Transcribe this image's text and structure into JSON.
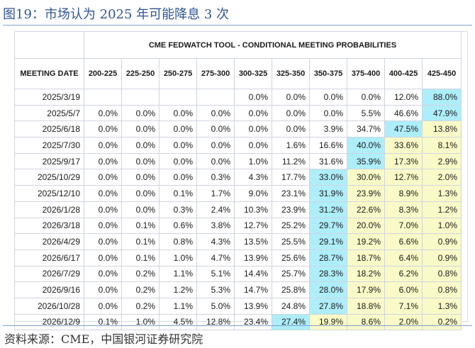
{
  "figure": {
    "title": "图19：市场认为 2025 年可能降息 3 次",
    "source": "资料来源：CME，中国银河证券研究院"
  },
  "colors": {
    "cyan": "#aeeefa",
    "yellow": "#fafac8",
    "white": "#ffffff"
  },
  "chart_data": {
    "type": "table",
    "title": "CME FEDWATCH TOOL - CONDITIONAL MEETING PROBABILITIES",
    "row_header": "MEETING DATE",
    "columns": [
      "200-225",
      "225-250",
      "250-275",
      "275-300",
      "300-325",
      "325-350",
      "350-375",
      "375-400",
      "400-425",
      "425-450"
    ],
    "rows": [
      {
        "date": "2025/3/19",
        "values": [
          "",
          "",
          "",
          "",
          "0.0%",
          "0.0%",
          "0.0%",
          "0.0%",
          "12.0%",
          "88.0%"
        ],
        "hl": [
          "",
          "",
          "",
          "",
          "",
          "",
          "",
          "",
          "",
          "c"
        ]
      },
      {
        "date": "2025/5/7",
        "values": [
          "0.0%",
          "0.0%",
          "0.0%",
          "0.0%",
          "0.0%",
          "0.0%",
          "0.0%",
          "5.5%",
          "46.6%",
          "47.9%"
        ],
        "hl": [
          "",
          "",
          "",
          "",
          "",
          "",
          "",
          "",
          "",
          "c"
        ]
      },
      {
        "date": "2025/6/18",
        "values": [
          "0.0%",
          "0.0%",
          "0.0%",
          "0.0%",
          "0.0%",
          "0.0%",
          "3.9%",
          "34.7%",
          "47.5%",
          "13.8%"
        ],
        "hl": [
          "",
          "",
          "",
          "",
          "",
          "",
          "",
          "",
          "c",
          "y"
        ]
      },
      {
        "date": "2025/7/30",
        "values": [
          "0.0%",
          "0.0%",
          "0.0%",
          "0.0%",
          "0.0%",
          "1.6%",
          "16.6%",
          "40.0%",
          "33.6%",
          "8.1%"
        ],
        "hl": [
          "",
          "",
          "",
          "",
          "",
          "",
          "",
          "c",
          "y",
          "y"
        ]
      },
      {
        "date": "2025/9/17",
        "values": [
          "0.0%",
          "0.0%",
          "0.0%",
          "0.0%",
          "1.0%",
          "11.2%",
          "31.6%",
          "35.9%",
          "17.3%",
          "2.9%"
        ],
        "hl": [
          "",
          "",
          "",
          "",
          "",
          "",
          "",
          "c",
          "y",
          "y"
        ]
      },
      {
        "date": "2025/10/29",
        "values": [
          "0.0%",
          "0.0%",
          "0.0%",
          "0.3%",
          "4.3%",
          "17.7%",
          "33.0%",
          "30.0%",
          "12.7%",
          "2.0%"
        ],
        "hl": [
          "",
          "",
          "",
          "",
          "",
          "",
          "c",
          "y",
          "y",
          "y"
        ]
      },
      {
        "date": "2025/12/10",
        "values": [
          "0.0%",
          "0.0%",
          "0.1%",
          "1.7%",
          "9.0%",
          "23.1%",
          "31.9%",
          "23.9%",
          "8.9%",
          "1.3%"
        ],
        "hl": [
          "",
          "",
          "",
          "",
          "",
          "",
          "c",
          "y",
          "y",
          "y"
        ]
      },
      {
        "date": "2026/1/28",
        "values": [
          "0.0%",
          "0.0%",
          "0.3%",
          "2.4%",
          "10.3%",
          "23.9%",
          "31.2%",
          "22.6%",
          "8.3%",
          "1.2%"
        ],
        "hl": [
          "",
          "",
          "",
          "",
          "",
          "",
          "c",
          "y",
          "y",
          "y"
        ]
      },
      {
        "date": "2026/3/18",
        "values": [
          "0.0%",
          "0.1%",
          "0.6%",
          "3.8%",
          "12.7%",
          "25.2%",
          "29.7%",
          "20.0%",
          "7.0%",
          "1.0%"
        ],
        "hl": [
          "",
          "",
          "",
          "",
          "",
          "",
          "c",
          "y",
          "y",
          "y"
        ]
      },
      {
        "date": "2026/4/29",
        "values": [
          "0.0%",
          "0.1%",
          "0.8%",
          "4.3%",
          "13.5%",
          "25.5%",
          "29.1%",
          "19.2%",
          "6.6%",
          "0.9%"
        ],
        "hl": [
          "",
          "",
          "",
          "",
          "",
          "",
          "c",
          "y",
          "y",
          "y"
        ]
      },
      {
        "date": "2026/6/17",
        "values": [
          "0.0%",
          "0.1%",
          "1.0%",
          "4.7%",
          "13.9%",
          "25.6%",
          "28.7%",
          "18.7%",
          "6.4%",
          "0.9%"
        ],
        "hl": [
          "",
          "",
          "",
          "",
          "",
          "",
          "c",
          "y",
          "y",
          "y"
        ]
      },
      {
        "date": "2026/7/29",
        "values": [
          "0.0%",
          "0.2%",
          "1.1%",
          "5.1%",
          "14.4%",
          "25.7%",
          "28.3%",
          "18.2%",
          "6.2%",
          "0.8%"
        ],
        "hl": [
          "",
          "",
          "",
          "",
          "",
          "",
          "c",
          "y",
          "y",
          "y"
        ]
      },
      {
        "date": "2026/9/16",
        "values": [
          "0.0%",
          "0.2%",
          "1.2%",
          "5.3%",
          "14.7%",
          "25.8%",
          "28.0%",
          "17.9%",
          "6.0%",
          "0.8%"
        ],
        "hl": [
          "",
          "",
          "",
          "",
          "",
          "",
          "c",
          "y",
          "y",
          "y"
        ]
      },
      {
        "date": "2026/10/28",
        "values": [
          "0.0%",
          "0.2%",
          "1.1%",
          "5.0%",
          "13.9%",
          "24.8%",
          "27.8%",
          "18.8%",
          "7.1%",
          "1.3%"
        ],
        "hl": [
          "",
          "",
          "",
          "",
          "",
          "",
          "c",
          "y",
          "y",
          "y"
        ]
      },
      {
        "date": "2026/12/9",
        "values": [
          "0.1%",
          "1.0%",
          "4.5%",
          "12.8%",
          "23.4%",
          "27.4%",
          "19.9%",
          "8.6%",
          "2.0%",
          "0.2%"
        ],
        "hl": [
          "",
          "",
          "",
          "",
          "",
          "c",
          "y",
          "y",
          "y",
          "y"
        ]
      }
    ]
  }
}
